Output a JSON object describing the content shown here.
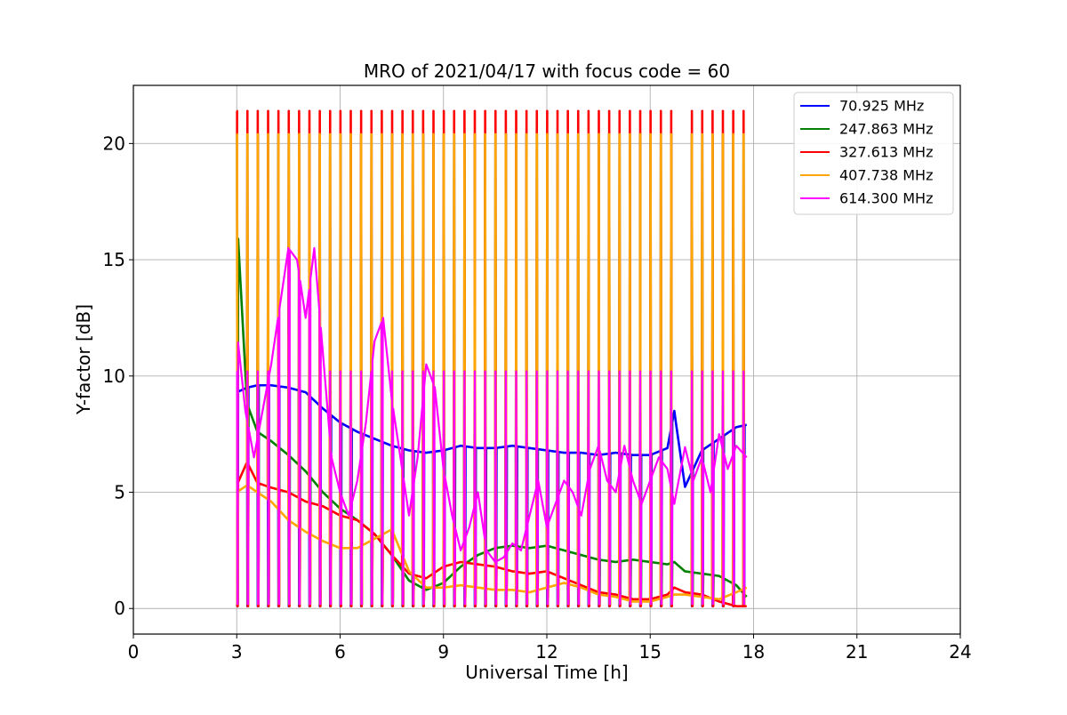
{
  "chart_data": {
    "type": "line",
    "title": "MRO of 2021/04/17 with focus code = 60",
    "xlabel": "Universal Time [h]",
    "ylabel": "Y-factor [dB]",
    "xlim": [
      0,
      24
    ],
    "ylim": [
      -1.1,
      22.5
    ],
    "xticks": [
      0,
      3,
      6,
      9,
      12,
      15,
      18,
      21,
      24
    ],
    "yticks": [
      0,
      5,
      10,
      15,
      20
    ],
    "xtick_labels": [
      "0",
      "3",
      "6",
      "9",
      "12",
      "15",
      "18",
      "21",
      "24"
    ],
    "ytick_labels": [
      "0",
      "5",
      "10",
      "15",
      "20"
    ],
    "grid": true,
    "legend_position": "top-right",
    "calibration_spikes": {
      "period_hours": 0.3,
      "start_hour": 3.0,
      "end_hour": 17.8,
      "gap_hours": [
        15.75,
        16.0
      ],
      "peak_levels_db": {
        "70.925 MHz": 0.1,
        "247.863 MHz": 20.4,
        "327.613 MHz": 21.4,
        "407.738 MHz": 20.4,
        "614.300 MHz": 10.2
      },
      "trough_levels_db": {
        "70.925 MHz": 0.2,
        "247.863 MHz": 0.2,
        "327.613 MHz": 0.1,
        "407.738 MHz": 0.2,
        "614.300 MHz": 0.2
      }
    },
    "series": [
      {
        "name": " 70.925 MHz",
        "color": "#0000ff",
        "x": [
          3.0,
          3.3,
          3.6,
          4.0,
          4.5,
          5.0,
          5.5,
          6.0,
          6.5,
          7.0,
          7.5,
          8.0,
          8.5,
          9.0,
          9.5,
          10.0,
          10.5,
          11.0,
          11.5,
          12.0,
          12.5,
          13.0,
          13.5,
          14.0,
          14.5,
          15.0,
          15.5,
          15.7,
          16.0,
          16.5,
          17.0,
          17.5,
          17.8
        ],
        "y": [
          9.3,
          9.5,
          9.6,
          9.6,
          9.5,
          9.3,
          8.6,
          8.0,
          7.6,
          7.3,
          7.0,
          6.8,
          6.7,
          6.8,
          7.0,
          6.9,
          6.9,
          7.0,
          6.9,
          6.8,
          6.7,
          6.7,
          6.6,
          6.7,
          6.6,
          6.6,
          6.9,
          8.5,
          5.2,
          6.8,
          7.3,
          7.8,
          7.9
        ]
      },
      {
        "name": " 247.863 MHz",
        "color": "#008000",
        "x": [
          3.0,
          3.3,
          3.6,
          4.0,
          4.5,
          5.0,
          5.5,
          6.0,
          6.5,
          7.0,
          7.5,
          8.0,
          8.5,
          9.0,
          9.5,
          10.0,
          10.5,
          11.0,
          11.5,
          12.0,
          12.5,
          13.0,
          13.5,
          14.0,
          14.5,
          15.0,
          15.5,
          15.7,
          16.0,
          16.5,
          17.0,
          17.5,
          17.8
        ],
        "y": [
          17.0,
          8.8,
          7.6,
          7.2,
          6.6,
          5.9,
          5.0,
          4.3,
          3.8,
          3.2,
          2.3,
          1.2,
          0.8,
          1.1,
          1.8,
          2.3,
          2.6,
          2.7,
          2.6,
          2.7,
          2.5,
          2.3,
          2.1,
          2.0,
          2.1,
          2.0,
          1.9,
          2.0,
          1.6,
          1.5,
          1.4,
          1.0,
          0.5
        ]
      },
      {
        "name": " 327.613 MHz",
        "color": "#ff0000",
        "x": [
          3.0,
          3.3,
          3.6,
          4.0,
          4.5,
          5.0,
          5.5,
          6.0,
          6.5,
          7.0,
          7.5,
          8.0,
          8.5,
          9.0,
          9.5,
          10.0,
          10.5,
          11.0,
          11.5,
          12.0,
          12.5,
          13.0,
          13.5,
          14.0,
          14.5,
          15.0,
          15.5,
          15.7,
          16.0,
          16.5,
          17.0,
          17.5,
          17.8
        ],
        "y": [
          5.3,
          6.3,
          5.4,
          5.2,
          5.0,
          4.6,
          4.4,
          4.0,
          3.8,
          3.2,
          2.3,
          1.5,
          1.3,
          1.8,
          2.0,
          1.9,
          1.8,
          1.6,
          1.5,
          1.6,
          1.3,
          1.0,
          0.7,
          0.6,
          0.4,
          0.4,
          0.6,
          0.9,
          0.7,
          0.6,
          0.3,
          0.1,
          0.1
        ]
      },
      {
        "name": " 407.738 MHz",
        "color": "#ffa500",
        "x": [
          3.0,
          3.3,
          3.6,
          4.0,
          4.5,
          5.0,
          5.5,
          6.0,
          6.5,
          7.0,
          7.5,
          8.0,
          8.5,
          9.0,
          9.5,
          10.0,
          10.5,
          11.0,
          11.5,
          12.0,
          12.5,
          13.0,
          13.5,
          14.0,
          14.5,
          15.0,
          15.5,
          15.7,
          16.0,
          16.5,
          17.0,
          17.5,
          17.8
        ],
        "y": [
          5.0,
          5.3,
          5.0,
          4.6,
          3.8,
          3.3,
          2.9,
          2.6,
          2.6,
          3.0,
          3.4,
          1.6,
          0.9,
          0.9,
          1.0,
          0.9,
          0.8,
          0.8,
          0.7,
          0.9,
          1.1,
          0.9,
          0.6,
          0.5,
          0.3,
          0.3,
          0.5,
          0.6,
          0.6,
          0.5,
          0.4,
          0.7,
          0.9
        ]
      },
      {
        "name": " 614.300 MHz",
        "color": "#ff00ff",
        "x": [
          3.0,
          3.25,
          3.5,
          3.75,
          4.0,
          4.25,
          4.5,
          4.75,
          5.0,
          5.25,
          5.5,
          5.75,
          6.0,
          6.25,
          6.5,
          6.75,
          7.0,
          7.25,
          7.5,
          7.75,
          8.0,
          8.25,
          8.5,
          8.75,
          9.0,
          9.25,
          9.5,
          9.75,
          10.0,
          10.25,
          10.5,
          10.75,
          11.0,
          11.25,
          11.5,
          11.75,
          12.0,
          12.25,
          12.5,
          12.75,
          13.0,
          13.25,
          13.5,
          13.75,
          14.0,
          14.25,
          14.5,
          14.75,
          15.0,
          15.25,
          15.5,
          15.7,
          16.0,
          16.25,
          16.5,
          16.75,
          17.0,
          17.25,
          17.5,
          17.8
        ],
        "y": [
          12.0,
          8.5,
          6.5,
          8.5,
          10.5,
          13.0,
          15.5,
          15.0,
          12.5,
          15.5,
          11.0,
          6.5,
          5.0,
          4.0,
          5.5,
          8.0,
          11.5,
          12.5,
          9.0,
          6.5,
          4.0,
          6.5,
          10.5,
          9.5,
          6.0,
          4.0,
          2.5,
          3.5,
          5.0,
          2.5,
          2.0,
          2.2,
          2.8,
          2.5,
          4.0,
          5.5,
          3.5,
          4.5,
          5.5,
          5.0,
          4.0,
          6.0,
          7.0,
          5.5,
          5.0,
          7.0,
          5.5,
          4.5,
          5.5,
          6.5,
          6.0,
          4.5,
          7.0,
          5.5,
          6.5,
          5.0,
          7.5,
          6.0,
          7.0,
          6.5
        ]
      }
    ]
  }
}
